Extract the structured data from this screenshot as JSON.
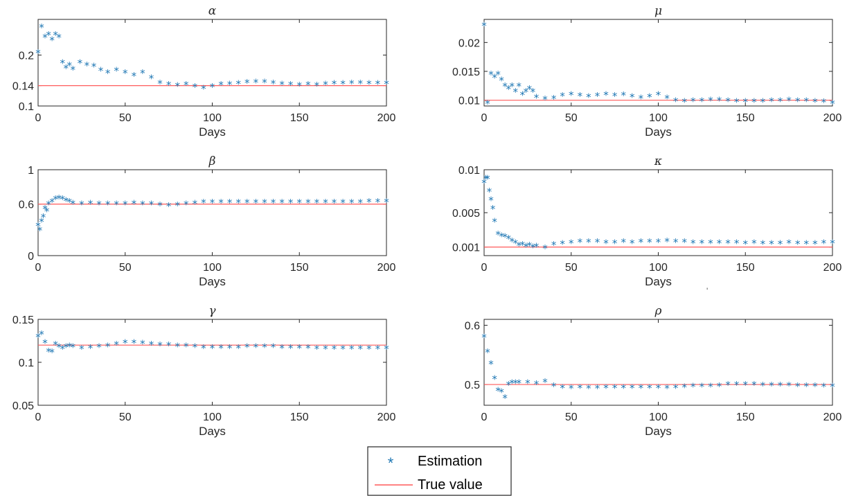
{
  "figure": {
    "colors": {
      "estimation": "#1f77b4",
      "true_value": "#ff5a5a",
      "axis": "#262626"
    },
    "legend": {
      "placement": "bottom-center",
      "entries": [
        {
          "label": "Estimation",
          "marker": "*",
          "color": "#1f77b4"
        },
        {
          "label": "True value",
          "marker": "line",
          "color": "#ff5a5a"
        }
      ]
    },
    "stray_mark": "'"
  },
  "chart_data": [
    {
      "type": "scatter",
      "title": "α",
      "xlabel": "Days",
      "xlim": [
        0,
        200
      ],
      "xticks": [
        0,
        50,
        100,
        150,
        200
      ],
      "ylim": [
        0.1,
        0.27
      ],
      "yticks": [
        0.1,
        0.14,
        0.2
      ],
      "ytick_labels": [
        "0.1",
        "0.14",
        "0.2"
      ],
      "true_value": 0.14,
      "series": [
        {
          "name": "Estimation",
          "x": [
            0,
            2,
            4,
            6,
            8,
            10,
            12,
            14,
            16,
            18,
            20,
            24,
            28,
            32,
            36,
            40,
            45,
            50,
            55,
            60,
            65,
            70,
            75,
            80,
            85,
            90,
            95,
            100,
            105,
            110,
            115,
            120,
            125,
            130,
            135,
            140,
            145,
            150,
            155,
            160,
            165,
            170,
            175,
            180,
            185,
            190,
            195,
            200
          ],
          "y": [
            0.205,
            0.255,
            0.235,
            0.24,
            0.23,
            0.24,
            0.235,
            0.185,
            0.175,
            0.18,
            0.172,
            0.185,
            0.18,
            0.178,
            0.17,
            0.165,
            0.17,
            0.165,
            0.16,
            0.165,
            0.155,
            0.145,
            0.142,
            0.14,
            0.142,
            0.138,
            0.135,
            0.138,
            0.142,
            0.143,
            0.144,
            0.146,
            0.147,
            0.147,
            0.145,
            0.143,
            0.142,
            0.141,
            0.142,
            0.141,
            0.143,
            0.144,
            0.144,
            0.145,
            0.145,
            0.144,
            0.144,
            0.144
          ]
        }
      ]
    },
    {
      "type": "scatter",
      "title": "μ",
      "xlabel": "Days",
      "xlim": [
        0,
        200
      ],
      "xticks": [
        0,
        50,
        100,
        150,
        200
      ],
      "ylim": [
        0.009,
        0.024
      ],
      "yticks": [
        0.01,
        0.015,
        0.02
      ],
      "ytick_labels": [
        "0.01",
        "0.015",
        "0.02"
      ],
      "true_value": 0.01,
      "series": [
        {
          "name": "Estimation",
          "x": [
            0,
            2,
            4,
            6,
            8,
            10,
            12,
            14,
            16,
            18,
            20,
            22,
            24,
            26,
            28,
            30,
            35,
            40,
            45,
            50,
            55,
            60,
            65,
            70,
            75,
            80,
            85,
            90,
            95,
            100,
            105,
            110,
            115,
            120,
            125,
            130,
            135,
            140,
            145,
            150,
            155,
            160,
            165,
            170,
            175,
            180,
            185,
            190,
            195,
            200
          ],
          "y": [
            0.023,
            0.0095,
            0.0145,
            0.014,
            0.0145,
            0.0135,
            0.0125,
            0.012,
            0.0125,
            0.0115,
            0.0125,
            0.011,
            0.0115,
            0.012,
            0.0115,
            0.0105,
            0.0102,
            0.0103,
            0.0108,
            0.011,
            0.0108,
            0.0106,
            0.0108,
            0.011,
            0.0108,
            0.0109,
            0.0106,
            0.0104,
            0.0106,
            0.011,
            0.0104,
            0.0099,
            0.0098,
            0.0099,
            0.0099,
            0.01,
            0.01,
            0.0099,
            0.0098,
            0.0098,
            0.0098,
            0.0098,
            0.0099,
            0.0099,
            0.01,
            0.0099,
            0.0099,
            0.0098,
            0.0097,
            0.0095
          ]
        }
      ]
    },
    {
      "type": "scatter",
      "title": "β",
      "xlabel": "Days",
      "xlim": [
        0,
        200
      ],
      "xticks": [
        0,
        50,
        100,
        150,
        200
      ],
      "ylim": [
        0,
        1
      ],
      "yticks": [
        0,
        0.6,
        1
      ],
      "ytick_labels": [
        "0",
        "0.6",
        "1"
      ],
      "true_value": 0.6,
      "series": [
        {
          "name": "Estimation",
          "x": [
            0,
            1,
            2,
            3,
            4,
            5,
            6,
            8,
            10,
            12,
            14,
            16,
            18,
            20,
            25,
            30,
            35,
            40,
            45,
            50,
            55,
            60,
            65,
            70,
            75,
            80,
            85,
            90,
            95,
            100,
            105,
            110,
            115,
            120,
            125,
            130,
            135,
            140,
            145,
            150,
            155,
            160,
            165,
            170,
            175,
            180,
            185,
            190,
            195,
            200
          ],
          "y": [
            0.35,
            0.3,
            0.4,
            0.45,
            0.55,
            0.52,
            0.6,
            0.63,
            0.66,
            0.67,
            0.66,
            0.64,
            0.63,
            0.61,
            0.6,
            0.61,
            0.6,
            0.6,
            0.6,
            0.6,
            0.61,
            0.6,
            0.6,
            0.59,
            0.58,
            0.59,
            0.6,
            0.61,
            0.62,
            0.62,
            0.62,
            0.62,
            0.62,
            0.62,
            0.62,
            0.62,
            0.62,
            0.62,
            0.62,
            0.62,
            0.62,
            0.62,
            0.62,
            0.62,
            0.62,
            0.62,
            0.62,
            0.63,
            0.63,
            0.63
          ]
        }
      ]
    },
    {
      "type": "scatter",
      "title": "κ",
      "xlabel": "Days",
      "xlim": [
        0,
        200
      ],
      "xticks": [
        0,
        50,
        100,
        150,
        200
      ],
      "ylim": [
        0,
        0.01
      ],
      "yticks": [
        0.001,
        0.005,
        0.01
      ],
      "ytick_labels": [
        "0.001",
        "0.005",
        "0.01"
      ],
      "true_value": 0.001,
      "series": [
        {
          "name": "Estimation",
          "x": [
            0,
            1,
            2,
            3,
            4,
            5,
            6,
            8,
            10,
            12,
            14,
            16,
            18,
            20,
            22,
            24,
            26,
            28,
            30,
            35,
            40,
            45,
            50,
            55,
            60,
            65,
            70,
            75,
            80,
            85,
            90,
            95,
            100,
            105,
            110,
            115,
            120,
            125,
            130,
            135,
            140,
            145,
            150,
            155,
            160,
            165,
            170,
            175,
            180,
            185,
            190,
            195,
            200
          ],
          "y": [
            0.0085,
            0.009,
            0.009,
            0.0075,
            0.0065,
            0.0055,
            0.004,
            0.0025,
            0.0023,
            0.0022,
            0.002,
            0.0017,
            0.0015,
            0.0012,
            0.0013,
            0.0011,
            0.0012,
            0.001,
            0.0011,
            0.0009,
            0.0013,
            0.0014,
            0.0015,
            0.0016,
            0.0016,
            0.0016,
            0.0015,
            0.0015,
            0.0016,
            0.0015,
            0.0016,
            0.0016,
            0.0016,
            0.0017,
            0.0016,
            0.0016,
            0.0015,
            0.0015,
            0.0015,
            0.0015,
            0.0015,
            0.0015,
            0.0014,
            0.0015,
            0.0014,
            0.0014,
            0.0014,
            0.0015,
            0.0014,
            0.0014,
            0.0014,
            0.0015,
            0.0015
          ]
        }
      ]
    },
    {
      "type": "scatter",
      "title": "γ",
      "xlabel": "Days",
      "xlim": [
        0,
        200
      ],
      "xticks": [
        0,
        50,
        100,
        150,
        200
      ],
      "ylim": [
        0.05,
        0.15
      ],
      "yticks": [
        0.05,
        0.1,
        0.15
      ],
      "ytick_labels": [
        "0.05",
        "0.1",
        "0.15"
      ],
      "true_value": 0.12,
      "series": [
        {
          "name": "Estimation",
          "x": [
            0,
            2,
            4,
            6,
            8,
            10,
            12,
            14,
            16,
            18,
            20,
            25,
            30,
            35,
            40,
            45,
            50,
            55,
            60,
            65,
            70,
            75,
            80,
            85,
            90,
            95,
            100,
            105,
            110,
            115,
            120,
            125,
            130,
            135,
            140,
            145,
            150,
            155,
            160,
            165,
            170,
            175,
            180,
            185,
            190,
            195,
            200
          ],
          "y": [
            0.13,
            0.133,
            0.123,
            0.113,
            0.112,
            0.121,
            0.118,
            0.116,
            0.118,
            0.119,
            0.118,
            0.116,
            0.117,
            0.118,
            0.119,
            0.121,
            0.123,
            0.123,
            0.122,
            0.121,
            0.12,
            0.12,
            0.119,
            0.119,
            0.118,
            0.117,
            0.117,
            0.117,
            0.117,
            0.117,
            0.118,
            0.118,
            0.118,
            0.118,
            0.117,
            0.117,
            0.117,
            0.117,
            0.116,
            0.116,
            0.116,
            0.116,
            0.116,
            0.116,
            0.116,
            0.116,
            0.116
          ]
        }
      ]
    },
    {
      "type": "scatter",
      "title": "ρ",
      "xlabel": "Days",
      "xlim": [
        0,
        200
      ],
      "xticks": [
        0,
        50,
        100,
        150,
        200
      ],
      "ylim": [
        0.465,
        0.61
      ],
      "yticks": [
        0.5,
        0.6
      ],
      "ytick_labels": [
        "0.5",
        "0.6"
      ],
      "true_value": 0.5,
      "series": [
        {
          "name": "Estimation",
          "x": [
            0,
            2,
            4,
            6,
            8,
            10,
            12,
            14,
            16,
            18,
            20,
            25,
            30,
            35,
            40,
            45,
            50,
            55,
            60,
            65,
            70,
            75,
            80,
            85,
            90,
            95,
            100,
            105,
            110,
            115,
            120,
            125,
            130,
            135,
            140,
            145,
            150,
            155,
            160,
            165,
            170,
            175,
            180,
            185,
            190,
            195,
            200
          ],
          "y": [
            0.58,
            0.555,
            0.535,
            0.51,
            0.49,
            0.488,
            0.478,
            0.5,
            0.503,
            0.503,
            0.503,
            0.503,
            0.501,
            0.505,
            0.498,
            0.495,
            0.494,
            0.495,
            0.494,
            0.494,
            0.495,
            0.495,
            0.495,
            0.495,
            0.495,
            0.495,
            0.495,
            0.494,
            0.495,
            0.496,
            0.497,
            0.497,
            0.497,
            0.498,
            0.5,
            0.5,
            0.5,
            0.5,
            0.499,
            0.499,
            0.499,
            0.499,
            0.498,
            0.498,
            0.498,
            0.497,
            0.497
          ]
        }
      ]
    }
  ]
}
